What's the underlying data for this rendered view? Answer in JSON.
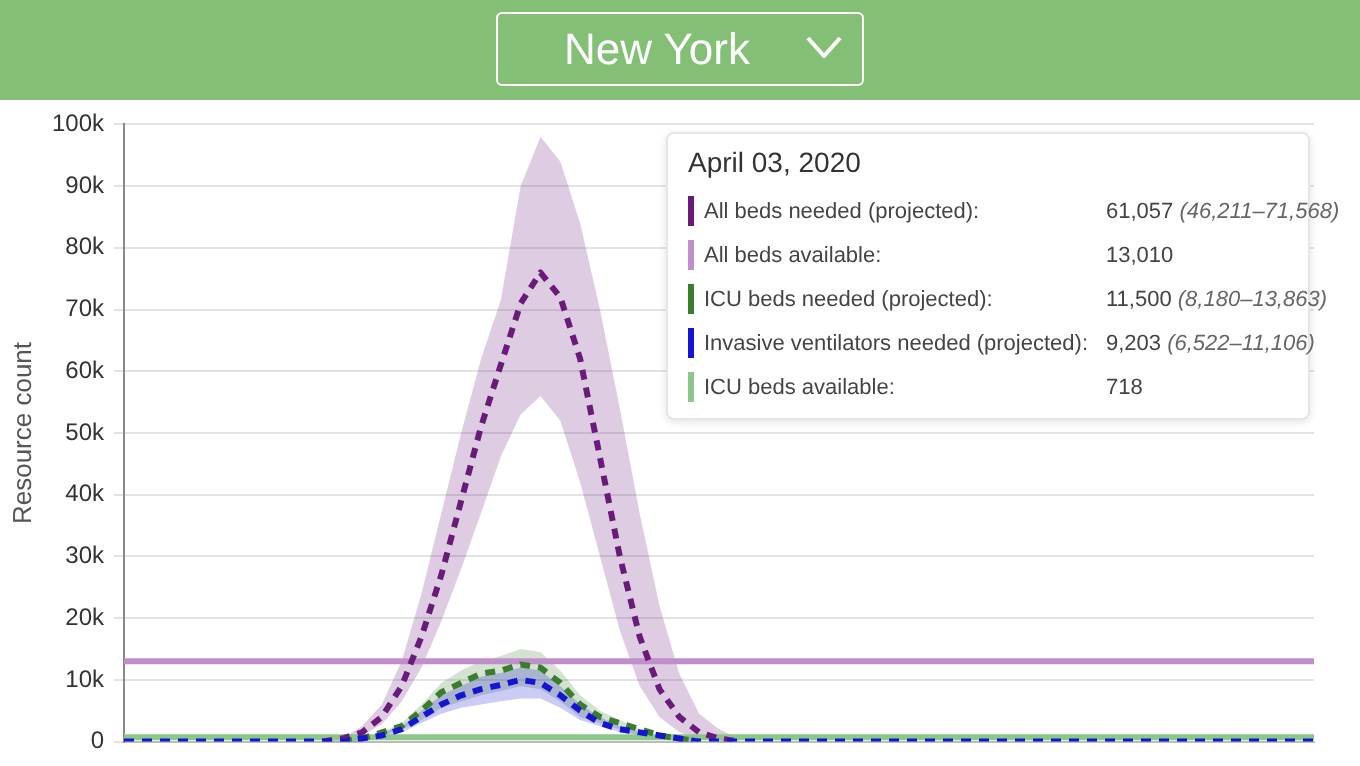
{
  "chart_data": {
    "type": "line",
    "title": "New York",
    "ylabel": "Resource count",
    "categories": [
      null,
      null,
      null,
      null,
      null,
      null,
      null,
      null,
      null,
      null,
      null,
      null,
      null,
      null,
      null,
      null,
      null,
      null,
      null,
      null,
      null,
      null,
      null,
      null,
      null,
      null,
      null,
      null,
      null,
      null,
      null,
      null,
      null,
      null,
      null,
      null,
      null,
      null,
      null,
      null,
      null,
      null,
      null,
      null,
      null,
      null,
      null,
      null,
      null,
      null,
      null,
      null,
      null,
      null,
      null,
      null,
      null,
      null,
      null,
      null,
      null
    ],
    "series": [
      {
        "name": "All beds needed (projected):",
        "color": "#6a1b7a",
        "line_style": "dashed",
        "values": [
          null,
          null,
          null,
          null,
          null,
          null,
          null,
          null,
          null,
          null,
          0,
          500,
          1500,
          4000,
          9000,
          17000,
          27000,
          39000,
          51000,
          61057,
          71000,
          76000,
          72000,
          62000,
          46000,
          30000,
          17000,
          8500,
          4000,
          1500,
          500,
          0,
          null,
          null,
          null,
          null,
          null,
          null,
          null,
          null,
          null,
          null,
          null,
          null,
          null,
          null,
          null,
          null,
          null,
          null,
          null,
          null,
          null,
          null,
          null,
          null,
          null,
          null,
          null,
          null,
          null
        ],
        "lower": [
          null,
          null,
          null,
          null,
          null,
          null,
          null,
          null,
          null,
          null,
          0,
          0,
          1000,
          2800,
          6500,
          12000,
          19500,
          28000,
          37000,
          46211,
          53000,
          56000,
          52000,
          42000,
          30000,
          18000,
          9000,
          4000,
          1500,
          500,
          0,
          0,
          null,
          null,
          null,
          null,
          null,
          null,
          null,
          null,
          null,
          null,
          null,
          null,
          null,
          null,
          null,
          null,
          null,
          null,
          null,
          null,
          null,
          null,
          null,
          null,
          null,
          null,
          null,
          null,
          null
        ],
        "upper": [
          null,
          null,
          null,
          null,
          null,
          null,
          null,
          null,
          null,
          null,
          0,
          500,
          2500,
          6000,
          13000,
          24000,
          37000,
          50000,
          62000,
          71568,
          90000,
          98000,
          94000,
          84000,
          70000,
          54000,
          37000,
          22000,
          11000,
          4500,
          2000,
          500,
          null,
          null,
          null,
          null,
          null,
          null,
          null,
          null,
          null,
          null,
          null,
          null,
          null,
          null,
          null,
          null,
          null,
          null,
          null,
          null,
          null,
          null,
          null,
          null,
          null,
          null,
          null,
          null,
          null
        ]
      },
      {
        "name": "All beds available:",
        "color": "#c08fcb",
        "line_style": "solid",
        "values": [
          13010,
          13010,
          13010,
          13010,
          13010,
          13010,
          13010,
          13010,
          13010,
          13010,
          13010,
          13010,
          13010,
          13010,
          13010,
          13010,
          13010,
          13010,
          13010,
          13010,
          13010,
          13010,
          13010,
          13010,
          13010,
          13010,
          13010,
          13010,
          13010,
          13010,
          13010,
          13010,
          13010,
          13010,
          13010,
          13010,
          13010,
          13010,
          13010,
          13010,
          13010,
          13010,
          13010,
          13010,
          13010,
          13010,
          13010,
          13010,
          13010,
          13010,
          13010,
          13010,
          13010,
          13010,
          13010,
          13010,
          13010,
          13010,
          13010,
          13010,
          13010
        ]
      },
      {
        "name": "ICU beds needed (projected):",
        "color": "#3a7d2c",
        "line_style": "dashed",
        "values": [
          null,
          null,
          null,
          null,
          null,
          null,
          null,
          null,
          null,
          null,
          null,
          0,
          500,
          1500,
          2500,
          5000,
          8000,
          9500,
          11000,
          11500,
          12500,
          12000,
          9500,
          6000,
          4000,
          3000,
          2000,
          1000,
          500,
          0,
          null,
          null,
          null,
          null,
          null,
          null,
          null,
          null,
          null,
          null,
          null,
          null,
          null,
          null,
          null,
          null,
          null,
          null,
          null,
          null,
          null,
          null,
          null,
          null,
          null,
          null,
          null,
          null,
          null,
          null,
          null
        ],
        "lower": [
          null,
          null,
          null,
          null,
          null,
          null,
          null,
          null,
          null,
          null,
          null,
          0,
          0,
          1000,
          2000,
          3500,
          5500,
          6500,
          7500,
          8180,
          9000,
          8500,
          6500,
          4000,
          3000,
          2000,
          1000,
          500,
          0,
          0,
          null,
          null,
          null,
          null,
          null,
          null,
          null,
          null,
          null,
          null,
          null,
          null,
          null,
          null,
          null,
          null,
          null,
          null,
          null,
          null,
          null,
          null,
          null,
          null,
          null,
          null,
          null,
          null,
          null,
          null,
          null
        ],
        "upper": [
          null,
          null,
          null,
          null,
          null,
          null,
          null,
          null,
          null,
          null,
          null,
          0,
          500,
          1500,
          3000,
          6000,
          9500,
          11500,
          13000,
          13863,
          15000,
          14500,
          11500,
          7500,
          5000,
          3500,
          2000,
          1000,
          500,
          0,
          null,
          null,
          null,
          null,
          null,
          null,
          null,
          null,
          null,
          null,
          null,
          null,
          null,
          null,
          null,
          null,
          null,
          null,
          null,
          null,
          null,
          null,
          null,
          null,
          null,
          null,
          null,
          null,
          null,
          null,
          null
        ]
      },
      {
        "name": "Invasive ventilators needed (projected):",
        "color": "#1414d2",
        "line_style": "dashed",
        "values": [
          0,
          0,
          0,
          0,
          0,
          0,
          0,
          0,
          0,
          0,
          0,
          0,
          500,
          1000,
          2000,
          4000,
          6000,
          7500,
          8500,
          9203,
          10000,
          9500,
          7500,
          5000,
          3000,
          2000,
          1500,
          1000,
          500,
          0,
          0,
          0,
          0,
          0,
          0,
          0,
          0,
          0,
          0,
          0,
          0,
          0,
          0,
          0,
          0,
          0,
          0,
          0,
          0,
          0,
          0,
          0,
          0,
          0,
          0,
          0,
          0,
          0,
          0,
          0,
          0
        ],
        "lower": [
          null,
          null,
          null,
          null,
          null,
          null,
          null,
          null,
          null,
          null,
          null,
          0,
          0,
          500,
          1500,
          3000,
          4500,
          5500,
          6000,
          6522,
          7000,
          7000,
          5500,
          3500,
          2500,
          1500,
          1000,
          500,
          0,
          0,
          null,
          null,
          null,
          null,
          null,
          null,
          null,
          null,
          null,
          null,
          null,
          null,
          null,
          null,
          null,
          null,
          null,
          null,
          null,
          null,
          null,
          null,
          null,
          null,
          null,
          null,
          null,
          null,
          null,
          null,
          null
        ],
        "upper": [
          null,
          null,
          null,
          null,
          null,
          null,
          null,
          null,
          null,
          null,
          null,
          0,
          500,
          1500,
          2500,
          5000,
          7500,
          9000,
          10500,
          11106,
          12000,
          11500,
          9000,
          6000,
          4000,
          2500,
          1500,
          1000,
          500,
          0,
          null,
          null,
          null,
          null,
          null,
          null,
          null,
          null,
          null,
          null,
          null,
          null,
          null,
          null,
          null,
          null,
          null,
          null,
          null,
          null,
          null,
          null,
          null,
          null,
          null,
          null,
          null,
          null,
          null,
          null,
          null
        ]
      },
      {
        "name": "ICU beds available:",
        "color": "#8cc68a",
        "line_style": "solid",
        "values": [
          718,
          718,
          718,
          718,
          718,
          718,
          718,
          718,
          718,
          718,
          718,
          718,
          718,
          718,
          718,
          718,
          718,
          718,
          718,
          718,
          718,
          718,
          718,
          718,
          718,
          718,
          718,
          718,
          718,
          718,
          718,
          718,
          718,
          718,
          718,
          718,
          718,
          718,
          718,
          718,
          718,
          718,
          718,
          718,
          718,
          718,
          718,
          718,
          718,
          718,
          718,
          718,
          718,
          718,
          718,
          718,
          718,
          718,
          718,
          718,
          718
        ]
      }
    ],
    "ylim": [
      0,
      100000
    ],
    "yticks": [
      0,
      {
        "value": 10000,
        "label": "10k"
      },
      {
        "value": 20000,
        "label": "20k"
      },
      {
        "value": 30000,
        "label": "30k"
      },
      {
        "value": 40000,
        "label": "40k"
      },
      {
        "value": 50000,
        "label": "50k"
      },
      {
        "value": 60000,
        "label": "60k"
      },
      {
        "value": 70000,
        "label": "70k"
      },
      {
        "value": 80000,
        "label": "80k"
      },
      {
        "value": 90000,
        "label": "90k"
      },
      {
        "value": 100000,
        "label": "100k"
      }
    ],
    "tick_labels": "y",
    "grid": "y",
    "legend": "top right",
    "marker": "none",
    "annotations": [
      "April 03, 2020",
      "61,057 (46,211–71,568)",
      "13,010",
      "11,500 (8,180–13,863)",
      "9,203 (6,522–11,106)",
      "718"
    ]
  }
}
